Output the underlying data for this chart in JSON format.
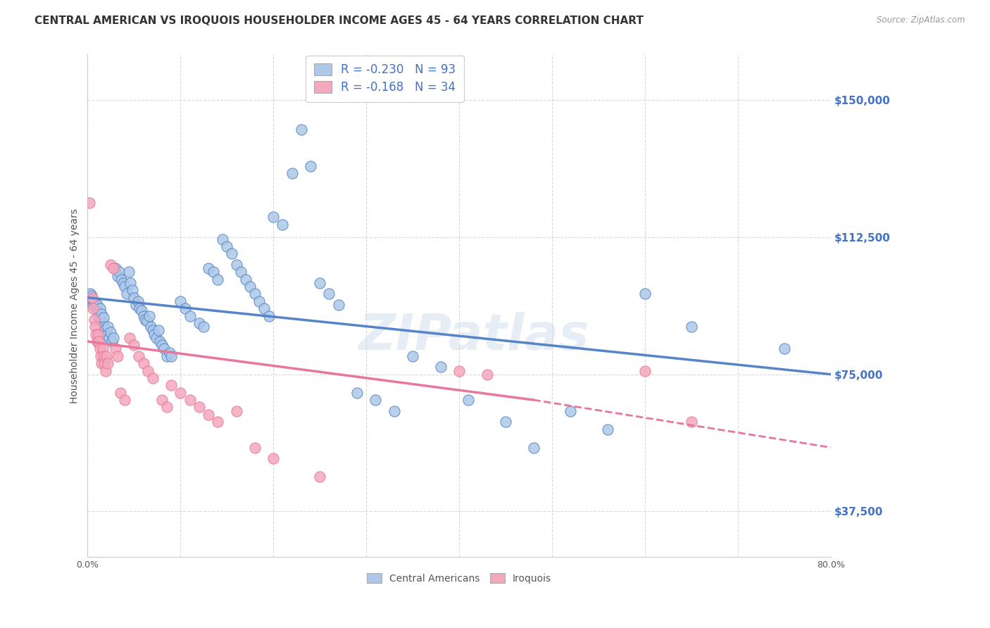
{
  "title": "CENTRAL AMERICAN VS IROQUOIS HOUSEHOLDER INCOME AGES 45 - 64 YEARS CORRELATION CHART",
  "source": "Source: ZipAtlas.com",
  "ylabel": "Householder Income Ages 45 - 64 years",
  "xlim": [
    0.0,
    0.8
  ],
  "ylim": [
    25000,
    162500
  ],
  "yticks": [
    37500,
    75000,
    112500,
    150000
  ],
  "ytick_labels": [
    "$37,500",
    "$75,000",
    "$112,500",
    "$150,000"
  ],
  "xticks": [
    0.0,
    0.1,
    0.2,
    0.3,
    0.4,
    0.5,
    0.6,
    0.7,
    0.8
  ],
  "xtick_labels": [
    "0.0%",
    "",
    "",
    "",
    "",
    "",
    "",
    "",
    "80.0%"
  ],
  "legend_r_blue": "-0.230",
  "legend_n_blue": "93",
  "legend_r_pink": "-0.168",
  "legend_n_pink": "34",
  "blue_color": "#adc8e8",
  "pink_color": "#f4a8bc",
  "blue_line_color": "#5585c8",
  "pink_line_color": "#e8789a",
  "label_color": "#4472c4",
  "watermark": "ZIPatlas",
  "blue_scatter": [
    [
      0.001,
      95000
    ],
    [
      0.002,
      96000
    ],
    [
      0.003,
      97000
    ],
    [
      0.004,
      96500
    ],
    [
      0.005,
      95500
    ],
    [
      0.006,
      94000
    ],
    [
      0.007,
      95000
    ],
    [
      0.008,
      94500
    ],
    [
      0.009,
      93500
    ],
    [
      0.01,
      94000
    ],
    [
      0.011,
      92000
    ],
    [
      0.012,
      91000
    ],
    [
      0.013,
      93000
    ],
    [
      0.014,
      90000
    ],
    [
      0.015,
      91500
    ],
    [
      0.016,
      89000
    ],
    [
      0.017,
      90500
    ],
    [
      0.018,
      88000
    ],
    [
      0.019,
      87500
    ],
    [
      0.02,
      86000
    ],
    [
      0.022,
      88000
    ],
    [
      0.023,
      85000
    ],
    [
      0.025,
      86500
    ],
    [
      0.026,
      84000
    ],
    [
      0.028,
      85000
    ],
    [
      0.03,
      104000
    ],
    [
      0.032,
      102000
    ],
    [
      0.034,
      103000
    ],
    [
      0.036,
      101000
    ],
    [
      0.038,
      100000
    ],
    [
      0.04,
      99000
    ],
    [
      0.042,
      97000
    ],
    [
      0.044,
      103000
    ],
    [
      0.046,
      100000
    ],
    [
      0.048,
      98000
    ],
    [
      0.05,
      96000
    ],
    [
      0.052,
      94000
    ],
    [
      0.054,
      95000
    ],
    [
      0.056,
      93000
    ],
    [
      0.058,
      92500
    ],
    [
      0.06,
      91000
    ],
    [
      0.062,
      90000
    ],
    [
      0.064,
      89500
    ],
    [
      0.066,
      91000
    ],
    [
      0.068,
      88000
    ],
    [
      0.07,
      87000
    ],
    [
      0.072,
      86000
    ],
    [
      0.074,
      85000
    ],
    [
      0.076,
      87000
    ],
    [
      0.078,
      84000
    ],
    [
      0.08,
      83000
    ],
    [
      0.082,
      82000
    ],
    [
      0.085,
      80000
    ],
    [
      0.088,
      81000
    ],
    [
      0.09,
      80000
    ],
    [
      0.1,
      95000
    ],
    [
      0.105,
      93000
    ],
    [
      0.11,
      91000
    ],
    [
      0.12,
      89000
    ],
    [
      0.125,
      88000
    ],
    [
      0.13,
      104000
    ],
    [
      0.135,
      103000
    ],
    [
      0.14,
      101000
    ],
    [
      0.145,
      112000
    ],
    [
      0.15,
      110000
    ],
    [
      0.155,
      108000
    ],
    [
      0.16,
      105000
    ],
    [
      0.165,
      103000
    ],
    [
      0.17,
      101000
    ],
    [
      0.175,
      99000
    ],
    [
      0.18,
      97000
    ],
    [
      0.185,
      95000
    ],
    [
      0.19,
      93000
    ],
    [
      0.195,
      91000
    ],
    [
      0.2,
      118000
    ],
    [
      0.21,
      116000
    ],
    [
      0.22,
      130000
    ],
    [
      0.23,
      142000
    ],
    [
      0.24,
      132000
    ],
    [
      0.25,
      100000
    ],
    [
      0.26,
      97000
    ],
    [
      0.27,
      94000
    ],
    [
      0.29,
      70000
    ],
    [
      0.31,
      68000
    ],
    [
      0.33,
      65000
    ],
    [
      0.35,
      80000
    ],
    [
      0.38,
      77000
    ],
    [
      0.41,
      68000
    ],
    [
      0.45,
      62000
    ],
    [
      0.48,
      55000
    ],
    [
      0.52,
      65000
    ],
    [
      0.56,
      60000
    ],
    [
      0.6,
      97000
    ],
    [
      0.65,
      88000
    ],
    [
      0.75,
      82000
    ]
  ],
  "pink_scatter": [
    [
      0.002,
      122000
    ],
    [
      0.005,
      96000
    ],
    [
      0.006,
      93000
    ],
    [
      0.007,
      90000
    ],
    [
      0.008,
      88000
    ],
    [
      0.009,
      86000
    ],
    [
      0.01,
      84000
    ],
    [
      0.011,
      86000
    ],
    [
      0.012,
      84000
    ],
    [
      0.013,
      82000
    ],
    [
      0.014,
      80000
    ],
    [
      0.015,
      78000
    ],
    [
      0.016,
      82000
    ],
    [
      0.017,
      80000
    ],
    [
      0.018,
      78000
    ],
    [
      0.019,
      76000
    ],
    [
      0.02,
      80000
    ],
    [
      0.022,
      78000
    ],
    [
      0.025,
      105000
    ],
    [
      0.028,
      104000
    ],
    [
      0.03,
      82000
    ],
    [
      0.032,
      80000
    ],
    [
      0.035,
      70000
    ],
    [
      0.04,
      68000
    ],
    [
      0.045,
      85000
    ],
    [
      0.05,
      83000
    ],
    [
      0.055,
      80000
    ],
    [
      0.06,
      78000
    ],
    [
      0.065,
      76000
    ],
    [
      0.07,
      74000
    ],
    [
      0.08,
      68000
    ],
    [
      0.085,
      66000
    ],
    [
      0.09,
      72000
    ],
    [
      0.1,
      70000
    ],
    [
      0.11,
      68000
    ],
    [
      0.12,
      66000
    ],
    [
      0.13,
      64000
    ],
    [
      0.14,
      62000
    ],
    [
      0.16,
      65000
    ],
    [
      0.18,
      55000
    ],
    [
      0.2,
      52000
    ],
    [
      0.25,
      47000
    ],
    [
      0.4,
      76000
    ],
    [
      0.43,
      75000
    ],
    [
      0.6,
      76000
    ],
    [
      0.65,
      62000
    ]
  ],
  "blue_trend": [
    0.0,
    0.8,
    96000,
    75000
  ],
  "pink_trend_solid": [
    0.0,
    0.48,
    84000,
    68000
  ],
  "pink_trend_dashed": [
    0.48,
    0.8,
    68000,
    55000
  ],
  "background_color": "#ffffff",
  "grid_color": "#d0d0d0",
  "title_fontsize": 11,
  "axis_label_fontsize": 10,
  "tick_fontsize": 9,
  "legend_fontsize": 12
}
